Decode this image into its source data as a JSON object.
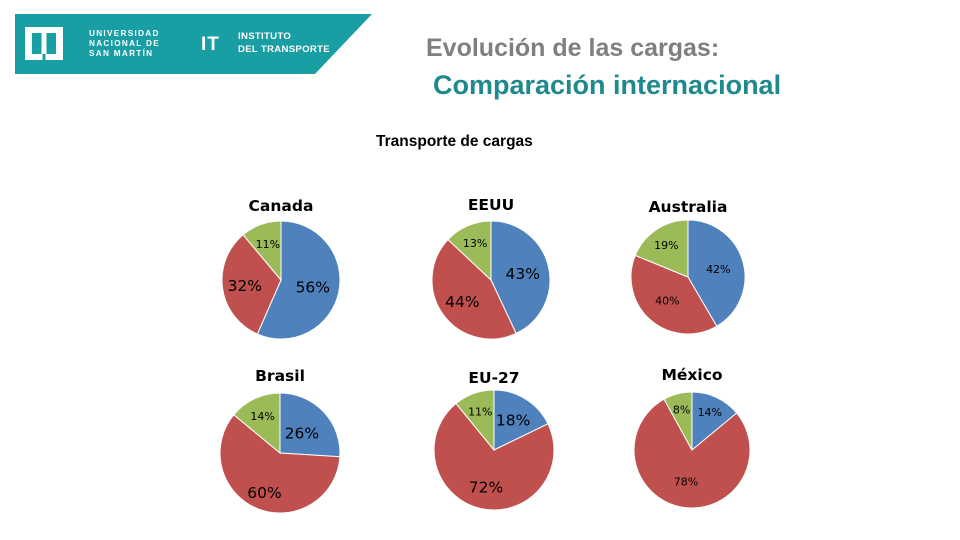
{
  "header": {
    "university_lines": [
      "UNIVERSIDAD",
      "NACIONAL DE",
      "SAN MARTÍN"
    ],
    "it_mark": "IT",
    "institute_lines": [
      "INSTITUTO",
      "DEL TRANSPORTE"
    ],
    "band_color": "#199ea3"
  },
  "title_line1": "Evolución de las cargas:",
  "title_line2": "Comparación internacional",
  "subtitle": "Transporte de cargas",
  "colors": {
    "blue": "#4f81bd",
    "red": "#c0504d",
    "green": "#9bbb59"
  },
  "chart_data": [
    {
      "type": "pie",
      "title": "Canada",
      "slices": [
        {
          "value": 56,
          "label": "56%",
          "color": "#4f81bd"
        },
        {
          "value": 32,
          "label": "32%",
          "color": "#c0504d"
        },
        {
          "value": 11,
          "label": "11%",
          "color": "#9bbb59"
        }
      ]
    },
    {
      "type": "pie",
      "title": "EEUU",
      "slices": [
        {
          "value": 43,
          "label": "43%",
          "color": "#4f81bd"
        },
        {
          "value": 44,
          "label": "44%",
          "color": "#c0504d"
        },
        {
          "value": 13,
          "label": "13%",
          "color": "#9bbb59"
        }
      ]
    },
    {
      "type": "pie",
      "title": "Australia",
      "slices": [
        {
          "value": 42,
          "label": "42%",
          "color": "#4f81bd"
        },
        {
          "value": 40,
          "label": "40%",
          "color": "#c0504d"
        },
        {
          "value": 19,
          "label": "19%",
          "color": "#9bbb59"
        }
      ]
    },
    {
      "type": "pie",
      "title": "Brasil",
      "slices": [
        {
          "value": 26,
          "label": "26%",
          "color": "#4f81bd"
        },
        {
          "value": 60,
          "label": "60%",
          "color": "#c0504d"
        },
        {
          "value": 14,
          "label": "14%",
          "color": "#9bbb59"
        }
      ]
    },
    {
      "type": "pie",
      "title": "EU-27",
      "slices": [
        {
          "value": 18,
          "label": "18%",
          "color": "#4f81bd"
        },
        {
          "value": 72,
          "label": "72%",
          "color": "#c0504d"
        },
        {
          "value": 11,
          "label": "11%",
          "color": "#9bbb59"
        }
      ]
    },
    {
      "type": "pie",
      "title": "México",
      "slices": [
        {
          "value": 14,
          "label": "14%",
          "color": "#4f81bd"
        },
        {
          "value": 78,
          "label": "78%",
          "color": "#c0504d"
        },
        {
          "value": 8,
          "label": "8%",
          "color": "#9bbb59"
        }
      ]
    }
  ]
}
